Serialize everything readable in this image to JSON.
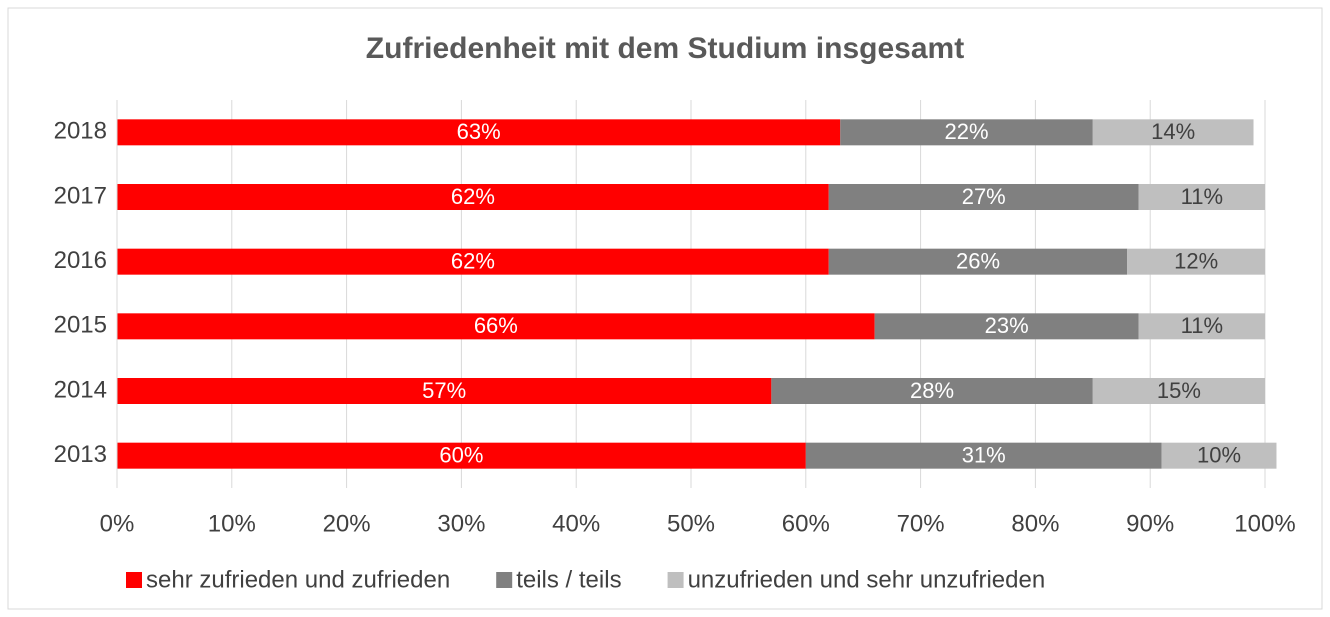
{
  "chart_data": {
    "type": "stacked-bar-horizontal",
    "title": "Zufriedenheit mit dem Studium insgesamt",
    "categories": [
      "2018",
      "2017",
      "2016",
      "2015",
      "2014",
      "2013"
    ],
    "series": [
      {
        "name": "sehr zufrieden und zufrieden",
        "color": "#ff0000",
        "values": [
          63,
          62,
          62,
          66,
          57,
          60
        ],
        "value_labels": [
          "63%",
          "62%",
          "62%",
          "66%",
          "57%",
          "60%"
        ]
      },
      {
        "name": "teils / teils",
        "color": "#808080",
        "values": [
          22,
          27,
          26,
          23,
          28,
          31
        ],
        "value_labels": [
          "22%",
          "27%",
          "26%",
          "23%",
          "28%",
          "31%"
        ]
      },
      {
        "name": "unzufrieden und sehr unzufrieden",
        "color": "#bfbfbf",
        "values": [
          14,
          11,
          12,
          11,
          15,
          10
        ],
        "value_labels": [
          "14%",
          "11%",
          "12%",
          "11%",
          "15%",
          "10%"
        ]
      }
    ],
    "xlim": [
      0,
      100
    ],
    "xticks": [
      {
        "value": 0,
        "label": "0%"
      },
      {
        "value": 10,
        "label": "10%"
      },
      {
        "value": 20,
        "label": "20%"
      },
      {
        "value": 30,
        "label": "30%"
      },
      {
        "value": 40,
        "label": "40%"
      },
      {
        "value": 50,
        "label": "50%"
      },
      {
        "value": 60,
        "label": "60%"
      },
      {
        "value": 70,
        "label": "70%"
      },
      {
        "value": 80,
        "label": "80%"
      },
      {
        "value": 90,
        "label": "90%"
      },
      {
        "value": 100,
        "label": "100%"
      }
    ],
    "grid": true,
    "legend": "bottom"
  }
}
